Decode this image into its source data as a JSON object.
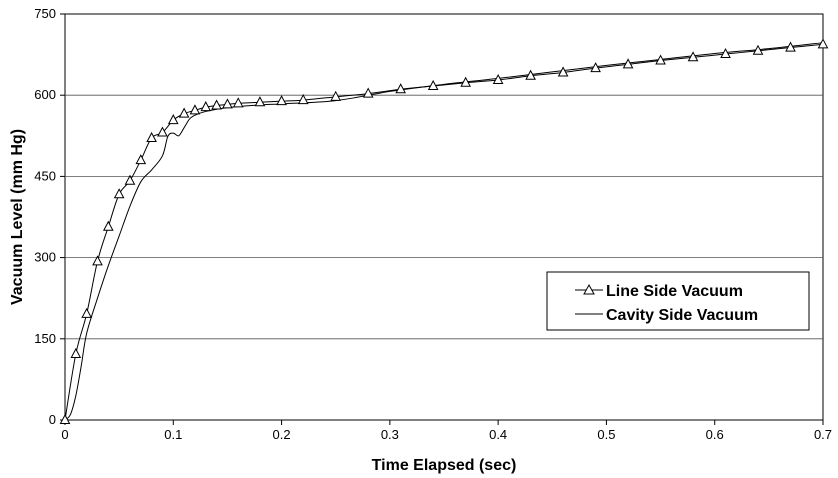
{
  "chart_data": {
    "type": "line",
    "title": "",
    "xlabel": "Time Elapsed (sec)",
    "ylabel": "Vacuum Level (mm Hg)",
    "xlim": [
      0,
      0.7
    ],
    "ylim": [
      0,
      750
    ],
    "xticks": [
      "0",
      "0.1",
      "0.2",
      "0.3",
      "0.4",
      "0.5",
      "0.6",
      "0.7"
    ],
    "yticks": [
      "0",
      "150",
      "300",
      "450",
      "600",
      "750"
    ],
    "grid": "horizontal",
    "legend_position": "right",
    "series": [
      {
        "name": "Line Side Vacuum",
        "marker": "triangle",
        "color": "#000000",
        "x": [
          0,
          0.01,
          0.02,
          0.03,
          0.04,
          0.05,
          0.06,
          0.07,
          0.08,
          0.09,
          0.1,
          0.11,
          0.12,
          0.13,
          0.14,
          0.15,
          0.16,
          0.18,
          0.2,
          0.22,
          0.25,
          0.28,
          0.31,
          0.34,
          0.37,
          0.4,
          0.43,
          0.46,
          0.49,
          0.52,
          0.55,
          0.58,
          0.61,
          0.64,
          0.67,
          0.7
        ],
        "y": [
          0,
          122,
          196,
          293,
          357,
          417,
          442,
          480,
          521,
          531,
          554,
          566,
          572,
          578,
          581,
          583,
          585,
          587,
          589,
          591,
          597,
          603,
          611,
          617,
          623,
          628,
          636,
          642,
          650,
          657,
          664,
          670,
          676,
          682,
          688,
          694
        ]
      },
      {
        "name": "Cavity Side Vacuum",
        "marker": "none",
        "color": "#000000",
        "x": [
          0,
          0.005,
          0.01,
          0.015,
          0.02,
          0.03,
          0.04,
          0.05,
          0.06,
          0.07,
          0.08,
          0.09,
          0.095,
          0.1,
          0.105,
          0.11,
          0.115,
          0.12,
          0.13,
          0.15,
          0.18,
          0.2,
          0.25,
          0.3,
          0.35,
          0.4,
          0.45,
          0.5,
          0.55,
          0.6,
          0.65,
          0.7
        ],
        "y": [
          0,
          10,
          45,
          100,
          160,
          225,
          285,
          340,
          395,
          440,
          462,
          488,
          524,
          530,
          525,
          540,
          556,
          563,
          570,
          577,
          582,
          584,
          590,
          607,
          620,
          631,
          643,
          655,
          666,
          677,
          686,
          697
        ]
      }
    ]
  }
}
